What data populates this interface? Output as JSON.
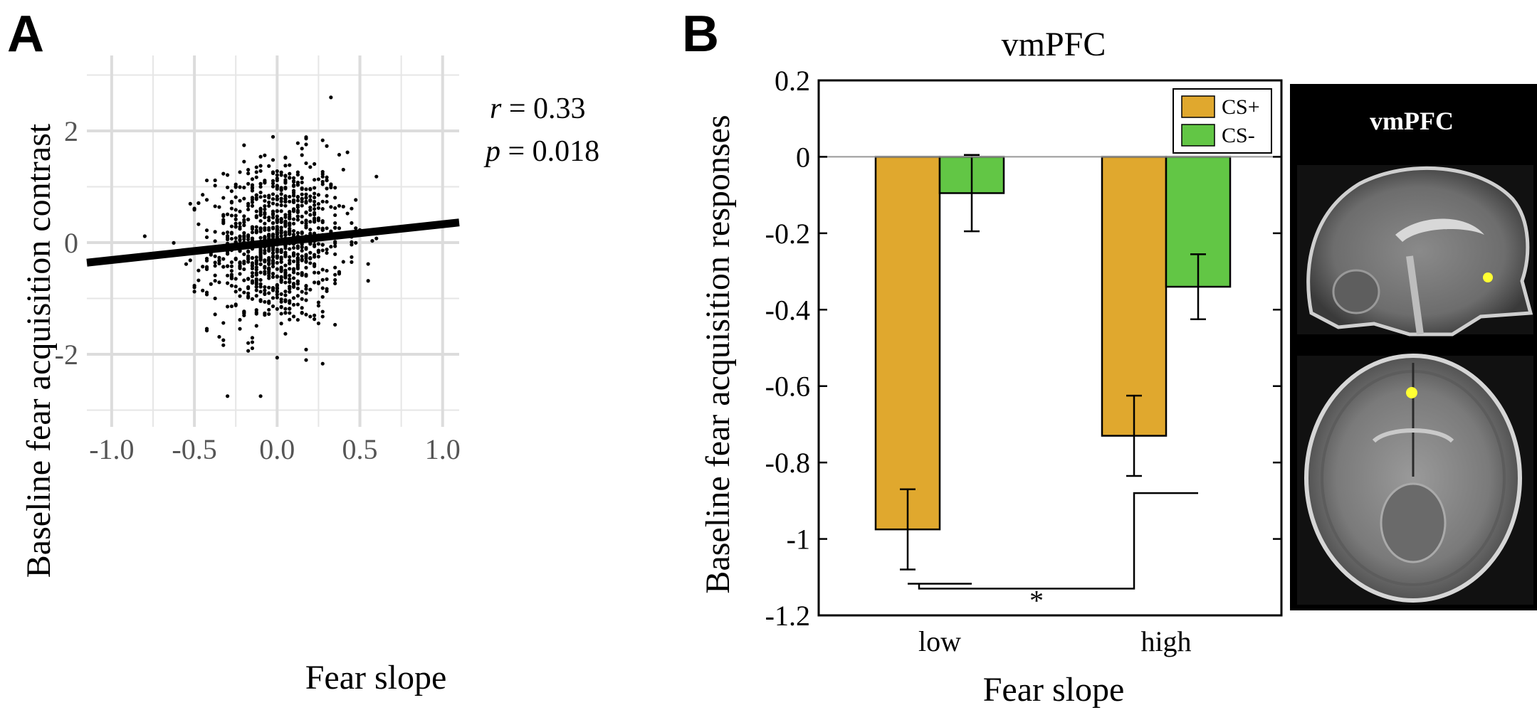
{
  "panels": {
    "a_label": "A",
    "b_label": "B"
  },
  "chart_data": [
    {
      "type": "scatter",
      "panel": "A",
      "xlabel": "Fear slope",
      "ylabel": "Baseline fear acquisition contrast",
      "xlim": [
        -1.15,
        1.1
      ],
      "ylim": [
        -3.3,
        3.35
      ],
      "xticks": [
        -1.0,
        -0.5,
        0.0,
        0.5,
        1.0
      ],
      "xtick_labels": [
        "-1.0",
        "-0.5",
        "0.0",
        "0.5",
        "1.0"
      ],
      "yticks": [
        -2,
        0,
        2
      ],
      "ytick_labels": [
        "-2",
        "0",
        "2"
      ],
      "grid": true,
      "background": "#ffffff",
      "grid_color": "#e6e6e6",
      "annotation": {
        "r_symbol": "r",
        "r_value": " = 0.33",
        "p_symbol": "p",
        "p_value": " = 0.018"
      },
      "point_cloud": {
        "n_points": 1000,
        "x_center": 0.0,
        "x_sd": 0.2,
        "y_center": 0.0,
        "y_sd": 0.75,
        "note_x_range": [
          -0.82,
          0.68
        ]
      },
      "fit_line": {
        "x": [
          -1.15,
          1.1
        ],
        "y": [
          -0.36,
          0.36
        ],
        "color": "#000000"
      }
    },
    {
      "type": "bar",
      "panel": "B",
      "title": "vmPFC",
      "xlabel": "Fear slope",
      "ylabel": "Baseline fear acquisition responses",
      "categories": [
        "low",
        "high"
      ],
      "ylim": [
        -1.2,
        0.2
      ],
      "yticks": [
        0.2,
        0,
        -0.2,
        -0.4,
        -0.6,
        -0.8,
        -1,
        -1.2
      ],
      "ytick_labels": [
        "0.2",
        "0",
        "-0.2",
        "-0.4",
        "-0.6",
        "-0.8",
        "-1",
        "-1.2"
      ],
      "series": [
        {
          "name": "CS+",
          "values": [
            -0.975,
            -0.73
          ],
          "errors": [
            0.105,
            0.105
          ],
          "color": "#E0A82E"
        },
        {
          "name": "CS-",
          "values": [
            -0.095,
            -0.34
          ],
          "errors": [
            0.1,
            0.085
          ],
          "color": "#62C645"
        }
      ],
      "legend": {
        "position": "top-right",
        "entries": [
          "CS+",
          "CS-"
        ]
      },
      "significance": {
        "label": "*",
        "between": [
          "low",
          "high"
        ],
        "series": "CS+"
      }
    }
  ],
  "brain_image": {
    "title": "vmPFC",
    "views": [
      "sagittal",
      "axial"
    ],
    "marker_color": "#FFFF33"
  }
}
